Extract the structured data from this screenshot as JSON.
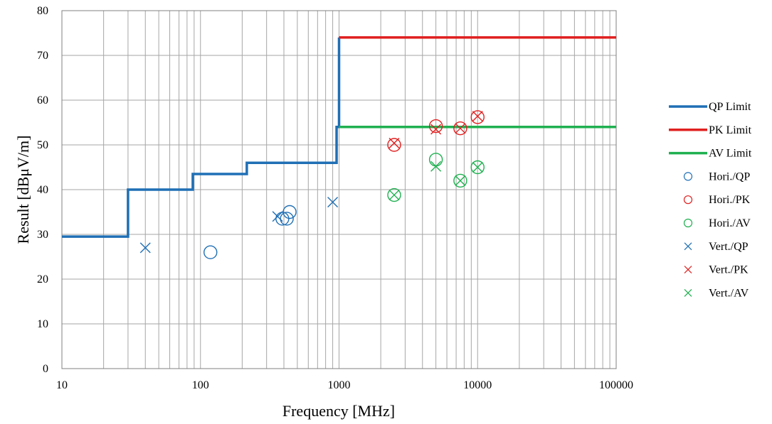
{
  "chart_data": {
    "type": "scatter",
    "title": "",
    "xlabel": "Frequency [MHz]",
    "ylabel": "Result [dBμV/m]",
    "xscale": "log",
    "xlim": [
      10,
      100000
    ],
    "ylim": [
      0,
      80
    ],
    "x_ticks": [
      "10",
      "100",
      "1000",
      "10000",
      "100000"
    ],
    "y_ticks": [
      "0",
      "10",
      "20",
      "30",
      "40",
      "50",
      "60",
      "70",
      "80"
    ],
    "grid": true,
    "legend_position": "right",
    "series": [
      {
        "name": "QP Limit",
        "kind": "line",
        "color": "#1f6fb5",
        "points": [
          [
            10,
            29.5
          ],
          [
            30,
            29.5
          ],
          [
            30,
            40
          ],
          [
            88,
            40
          ],
          [
            88,
            43.5
          ],
          [
            216,
            43.5
          ],
          [
            216,
            46
          ],
          [
            960,
            46
          ],
          [
            960,
            54
          ],
          [
            1000,
            54
          ],
          [
            1000,
            74
          ]
        ]
      },
      {
        "name": "PK Limit",
        "kind": "line",
        "color": "#e02020",
        "points": [
          [
            1000,
            74
          ],
          [
            100000,
            74
          ]
        ]
      },
      {
        "name": "AV Limit",
        "kind": "line",
        "color": "#1fb050",
        "points": [
          [
            1000,
            54
          ],
          [
            100000,
            54
          ]
        ]
      },
      {
        "name": "Hori./QP",
        "kind": "marker",
        "marker": "circle",
        "color": "#1f6fb5",
        "points": [
          [
            118,
            26
          ],
          [
            390,
            33.5
          ],
          [
            420,
            33.5
          ],
          [
            440,
            35
          ]
        ]
      },
      {
        "name": "Hori./PK",
        "kind": "marker",
        "marker": "circle",
        "color": "#e02020",
        "points": [
          [
            2500,
            50
          ],
          [
            5000,
            54.2
          ],
          [
            7500,
            53.7
          ],
          [
            10000,
            56.2
          ]
        ]
      },
      {
        "name": "Hori./AV",
        "kind": "marker",
        "marker": "circle",
        "color": "#1fb050",
        "points": [
          [
            2500,
            38.8
          ],
          [
            5000,
            46.7
          ],
          [
            7500,
            42
          ],
          [
            10000,
            45
          ]
        ]
      },
      {
        "name": "Vert./QP",
        "kind": "marker",
        "marker": "x",
        "color": "#1f6fb5",
        "points": [
          [
            40,
            27
          ],
          [
            360,
            34
          ],
          [
            900,
            37.2
          ]
        ]
      },
      {
        "name": "Vert./PK",
        "kind": "marker",
        "marker": "x",
        "color": "#e02020",
        "points": [
          [
            2500,
            50.4
          ],
          [
            5000,
            53.5
          ],
          [
            7500,
            53.7
          ],
          [
            10000,
            56.4
          ]
        ]
      },
      {
        "name": "Vert./AV",
        "kind": "marker",
        "marker": "x",
        "color": "#1fb050",
        "points": [
          [
            2500,
            38.8
          ],
          [
            5000,
            45.2
          ],
          [
            7500,
            42
          ],
          [
            10000,
            45
          ]
        ]
      }
    ]
  }
}
